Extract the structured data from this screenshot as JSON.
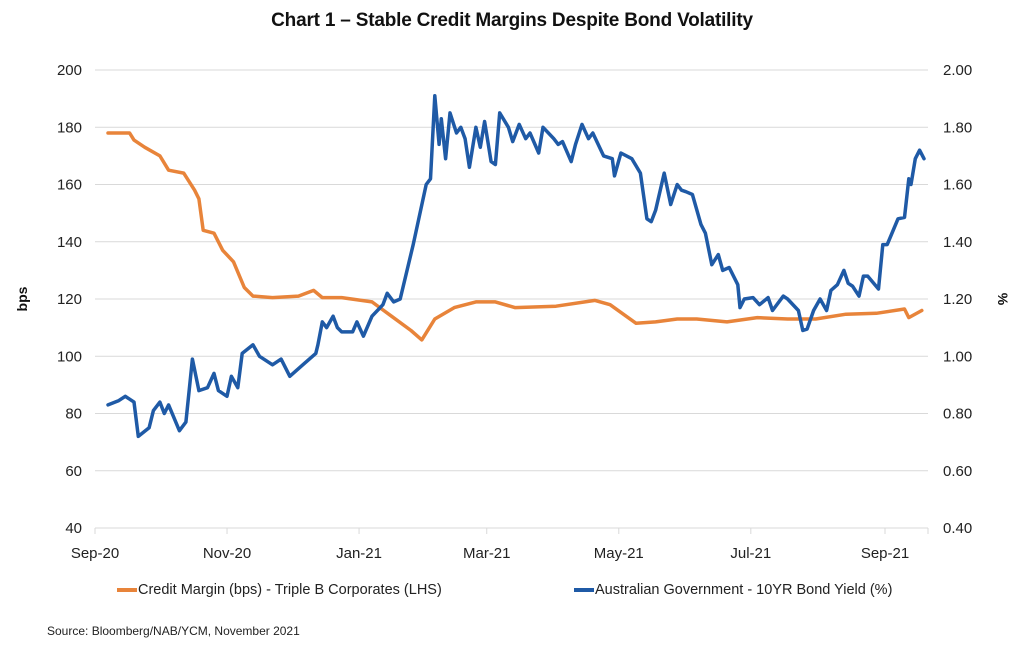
{
  "chart_data": {
    "type": "line",
    "title": "Chart 1 – Stable Credit Margins Despite Bond Volatility",
    "ylabel_left": "bps",
    "ylabel_right": "%",
    "xlabel": "",
    "ylim_left": [
      40,
      200
    ],
    "ylim_right": [
      0.4,
      2.0
    ],
    "yticks_left": [
      "200",
      "180",
      "160",
      "140",
      "120",
      "100",
      "80",
      "60",
      "40"
    ],
    "yticks_right": [
      "2.00",
      "1.80",
      "1.60",
      "1.40",
      "1.20",
      "1.00",
      "0.80",
      "0.60",
      "0.40"
    ],
    "x_tick_labels": [
      "Sep-20",
      "Nov-20",
      "Jan-21",
      "Mar-21",
      "May-21",
      "Jul-21",
      "Sep-21"
    ],
    "x_tick_dates": [
      "2020-09-01",
      "2020-11-01",
      "2021-01-01",
      "2021-03-01",
      "2021-05-01",
      "2021-07-01",
      "2021-09-01"
    ],
    "xlim": [
      "2020-09-01",
      "2021-09-20"
    ],
    "grid": true,
    "legend_position": "bottom",
    "source": "Source: Bloomberg/NAB/YCM, November 2021",
    "series": [
      {
        "name": "Credit Margin (bps) - Triple B Corporates (LHS)",
        "axis": "left",
        "color": "#E8843A",
        "points": [
          [
            "2020-09-07",
            178
          ],
          [
            "2020-09-17",
            178
          ],
          [
            "2020-09-19",
            175.5
          ],
          [
            "2020-09-24",
            173
          ],
          [
            "2020-10-01",
            170
          ],
          [
            "2020-10-05",
            165
          ],
          [
            "2020-10-12",
            164
          ],
          [
            "2020-10-17",
            158
          ],
          [
            "2020-10-19",
            155
          ],
          [
            "2020-10-21",
            144
          ],
          [
            "2020-10-26",
            143
          ],
          [
            "2020-10-30",
            137
          ],
          [
            "2020-11-04",
            133
          ],
          [
            "2020-11-09",
            124
          ],
          [
            "2020-11-13",
            121
          ],
          [
            "2020-11-22",
            120.5
          ],
          [
            "2020-12-04",
            121
          ],
          [
            "2020-12-11",
            123
          ],
          [
            "2020-12-15",
            120.5
          ],
          [
            "2020-12-24",
            120.5
          ],
          [
            "2021-01-07",
            119
          ],
          [
            "2021-01-16",
            114
          ],
          [
            "2021-01-25",
            109
          ],
          [
            "2021-01-30",
            105.7
          ],
          [
            "2021-02-05",
            113
          ],
          [
            "2021-02-14",
            117
          ],
          [
            "2021-02-24",
            119
          ],
          [
            "2021-03-05",
            119
          ],
          [
            "2021-03-14",
            117
          ],
          [
            "2021-04-02",
            117.5
          ],
          [
            "2021-04-20",
            119.5
          ],
          [
            "2021-04-27",
            118
          ],
          [
            "2021-05-09",
            111.5
          ],
          [
            "2021-05-18",
            112
          ],
          [
            "2021-05-28",
            113
          ],
          [
            "2021-06-06",
            113
          ],
          [
            "2021-06-20",
            112
          ],
          [
            "2021-07-04",
            113.5
          ],
          [
            "2021-07-18",
            113
          ],
          [
            "2021-07-31",
            113
          ],
          [
            "2021-08-14",
            114.7
          ],
          [
            "2021-08-28",
            115
          ],
          [
            "2021-09-10",
            116.5
          ],
          [
            "2021-09-12",
            113.5
          ],
          [
            "2021-09-18",
            116
          ]
        ]
      },
      {
        "name": "Australian Government - 10YR Bond Yield (%)",
        "axis": "right",
        "color": "#1F5AA6",
        "points": [
          [
            "2020-09-07",
            0.83
          ],
          [
            "2020-09-12",
            0.845
          ],
          [
            "2020-09-15",
            0.86
          ],
          [
            "2020-09-19",
            0.84
          ],
          [
            "2020-09-21",
            0.72
          ],
          [
            "2020-09-26",
            0.75
          ],
          [
            "2020-09-28",
            0.81
          ],
          [
            "2020-10-01",
            0.84
          ],
          [
            "2020-10-03",
            0.8
          ],
          [
            "2020-10-05",
            0.83
          ],
          [
            "2020-10-10",
            0.74
          ],
          [
            "2020-10-13",
            0.77
          ],
          [
            "2020-10-16",
            0.99
          ],
          [
            "2020-10-19",
            0.88
          ],
          [
            "2020-10-23",
            0.89
          ],
          [
            "2020-10-26",
            0.94
          ],
          [
            "2020-10-28",
            0.88
          ],
          [
            "2020-11-01",
            0.86
          ],
          [
            "2020-11-03",
            0.93
          ],
          [
            "2020-11-06",
            0.89
          ],
          [
            "2020-11-08",
            1.01
          ],
          [
            "2020-11-13",
            1.04
          ],
          [
            "2020-11-16",
            1.0
          ],
          [
            "2020-11-22",
            0.97
          ],
          [
            "2020-11-26",
            0.99
          ],
          [
            "2020-11-30",
            0.93
          ],
          [
            "2020-12-06",
            0.97
          ],
          [
            "2020-12-12",
            1.01
          ],
          [
            "2020-12-13",
            1.04
          ],
          [
            "2020-12-15",
            1.12
          ],
          [
            "2020-12-17",
            1.1
          ],
          [
            "2020-12-20",
            1.14
          ],
          [
            "2020-12-22",
            1.1
          ],
          [
            "2020-12-24",
            1.085
          ],
          [
            "2020-12-29",
            1.085
          ],
          [
            "2020-12-31",
            1.12
          ],
          [
            "2021-01-03",
            1.07
          ],
          [
            "2021-01-07",
            1.14
          ],
          [
            "2021-01-12",
            1.18
          ],
          [
            "2021-01-14",
            1.22
          ],
          [
            "2021-01-17",
            1.19
          ],
          [
            "2021-01-20",
            1.2
          ],
          [
            "2021-01-26",
            1.39
          ],
          [
            "2021-02-01",
            1.6
          ],
          [
            "2021-02-03",
            1.62
          ],
          [
            "2021-02-05",
            1.91
          ],
          [
            "2021-02-07",
            1.74
          ],
          [
            "2021-02-08",
            1.83
          ],
          [
            "2021-02-10",
            1.69
          ],
          [
            "2021-02-12",
            1.85
          ],
          [
            "2021-02-15",
            1.78
          ],
          [
            "2021-02-17",
            1.8
          ],
          [
            "2021-02-19",
            1.76
          ],
          [
            "2021-02-21",
            1.66
          ],
          [
            "2021-02-24",
            1.8
          ],
          [
            "2021-02-26",
            1.73
          ],
          [
            "2021-02-28",
            1.82
          ],
          [
            "2021-03-03",
            1.68
          ],
          [
            "2021-03-05",
            1.67
          ],
          [
            "2021-03-07",
            1.85
          ],
          [
            "2021-03-11",
            1.8
          ],
          [
            "2021-03-13",
            1.75
          ],
          [
            "2021-03-16",
            1.81
          ],
          [
            "2021-03-19",
            1.76
          ],
          [
            "2021-03-21",
            1.78
          ],
          [
            "2021-03-25",
            1.71
          ],
          [
            "2021-03-27",
            1.8
          ],
          [
            "2021-04-01",
            1.76
          ],
          [
            "2021-04-03",
            1.74
          ],
          [
            "2021-04-05",
            1.75
          ],
          [
            "2021-04-09",
            1.68
          ],
          [
            "2021-04-11",
            1.74
          ],
          [
            "2021-04-14",
            1.81
          ],
          [
            "2021-04-17",
            1.76
          ],
          [
            "2021-04-19",
            1.78
          ],
          [
            "2021-04-24",
            1.7
          ],
          [
            "2021-04-28",
            1.69
          ],
          [
            "2021-04-29",
            1.63
          ],
          [
            "2021-05-02",
            1.71
          ],
          [
            "2021-05-07",
            1.69
          ],
          [
            "2021-05-11",
            1.64
          ],
          [
            "2021-05-14",
            1.48
          ],
          [
            "2021-05-16",
            1.47
          ],
          [
            "2021-05-18",
            1.51
          ],
          [
            "2021-05-22",
            1.64
          ],
          [
            "2021-05-25",
            1.53
          ],
          [
            "2021-05-28",
            1.6
          ],
          [
            "2021-05-30",
            1.58
          ],
          [
            "2021-06-01",
            1.575
          ],
          [
            "2021-06-04",
            1.565
          ],
          [
            "2021-06-08",
            1.46
          ],
          [
            "2021-06-10",
            1.43
          ],
          [
            "2021-06-13",
            1.32
          ],
          [
            "2021-06-16",
            1.355
          ],
          [
            "2021-06-18",
            1.3
          ],
          [
            "2021-06-21",
            1.31
          ],
          [
            "2021-06-25",
            1.25
          ],
          [
            "2021-06-26",
            1.17
          ],
          [
            "2021-06-28",
            1.2
          ],
          [
            "2021-07-02",
            1.205
          ],
          [
            "2021-07-05",
            1.18
          ],
          [
            "2021-07-09",
            1.205
          ],
          [
            "2021-07-11",
            1.16
          ],
          [
            "2021-07-16",
            1.21
          ],
          [
            "2021-07-18",
            1.2
          ],
          [
            "2021-07-23",
            1.16
          ],
          [
            "2021-07-25",
            1.09
          ],
          [
            "2021-07-27",
            1.095
          ],
          [
            "2021-07-30",
            1.16
          ],
          [
            "2021-08-02",
            1.2
          ],
          [
            "2021-08-05",
            1.16
          ],
          [
            "2021-08-07",
            1.23
          ],
          [
            "2021-08-10",
            1.25
          ],
          [
            "2021-08-13",
            1.3
          ],
          [
            "2021-08-15",
            1.255
          ],
          [
            "2021-08-17",
            1.245
          ],
          [
            "2021-08-20",
            1.21
          ],
          [
            "2021-08-22",
            1.28
          ],
          [
            "2021-08-24",
            1.28
          ],
          [
            "2021-08-29",
            1.235
          ],
          [
            "2021-08-31",
            1.39
          ],
          [
            "2021-09-02",
            1.39
          ],
          [
            "2021-09-07",
            1.48
          ],
          [
            "2021-09-10",
            1.485
          ],
          [
            "2021-09-12",
            1.62
          ],
          [
            "2021-09-13",
            1.6
          ],
          [
            "2021-09-15",
            1.69
          ],
          [
            "2021-09-17",
            1.72
          ],
          [
            "2021-09-19",
            1.69
          ]
        ]
      }
    ]
  }
}
